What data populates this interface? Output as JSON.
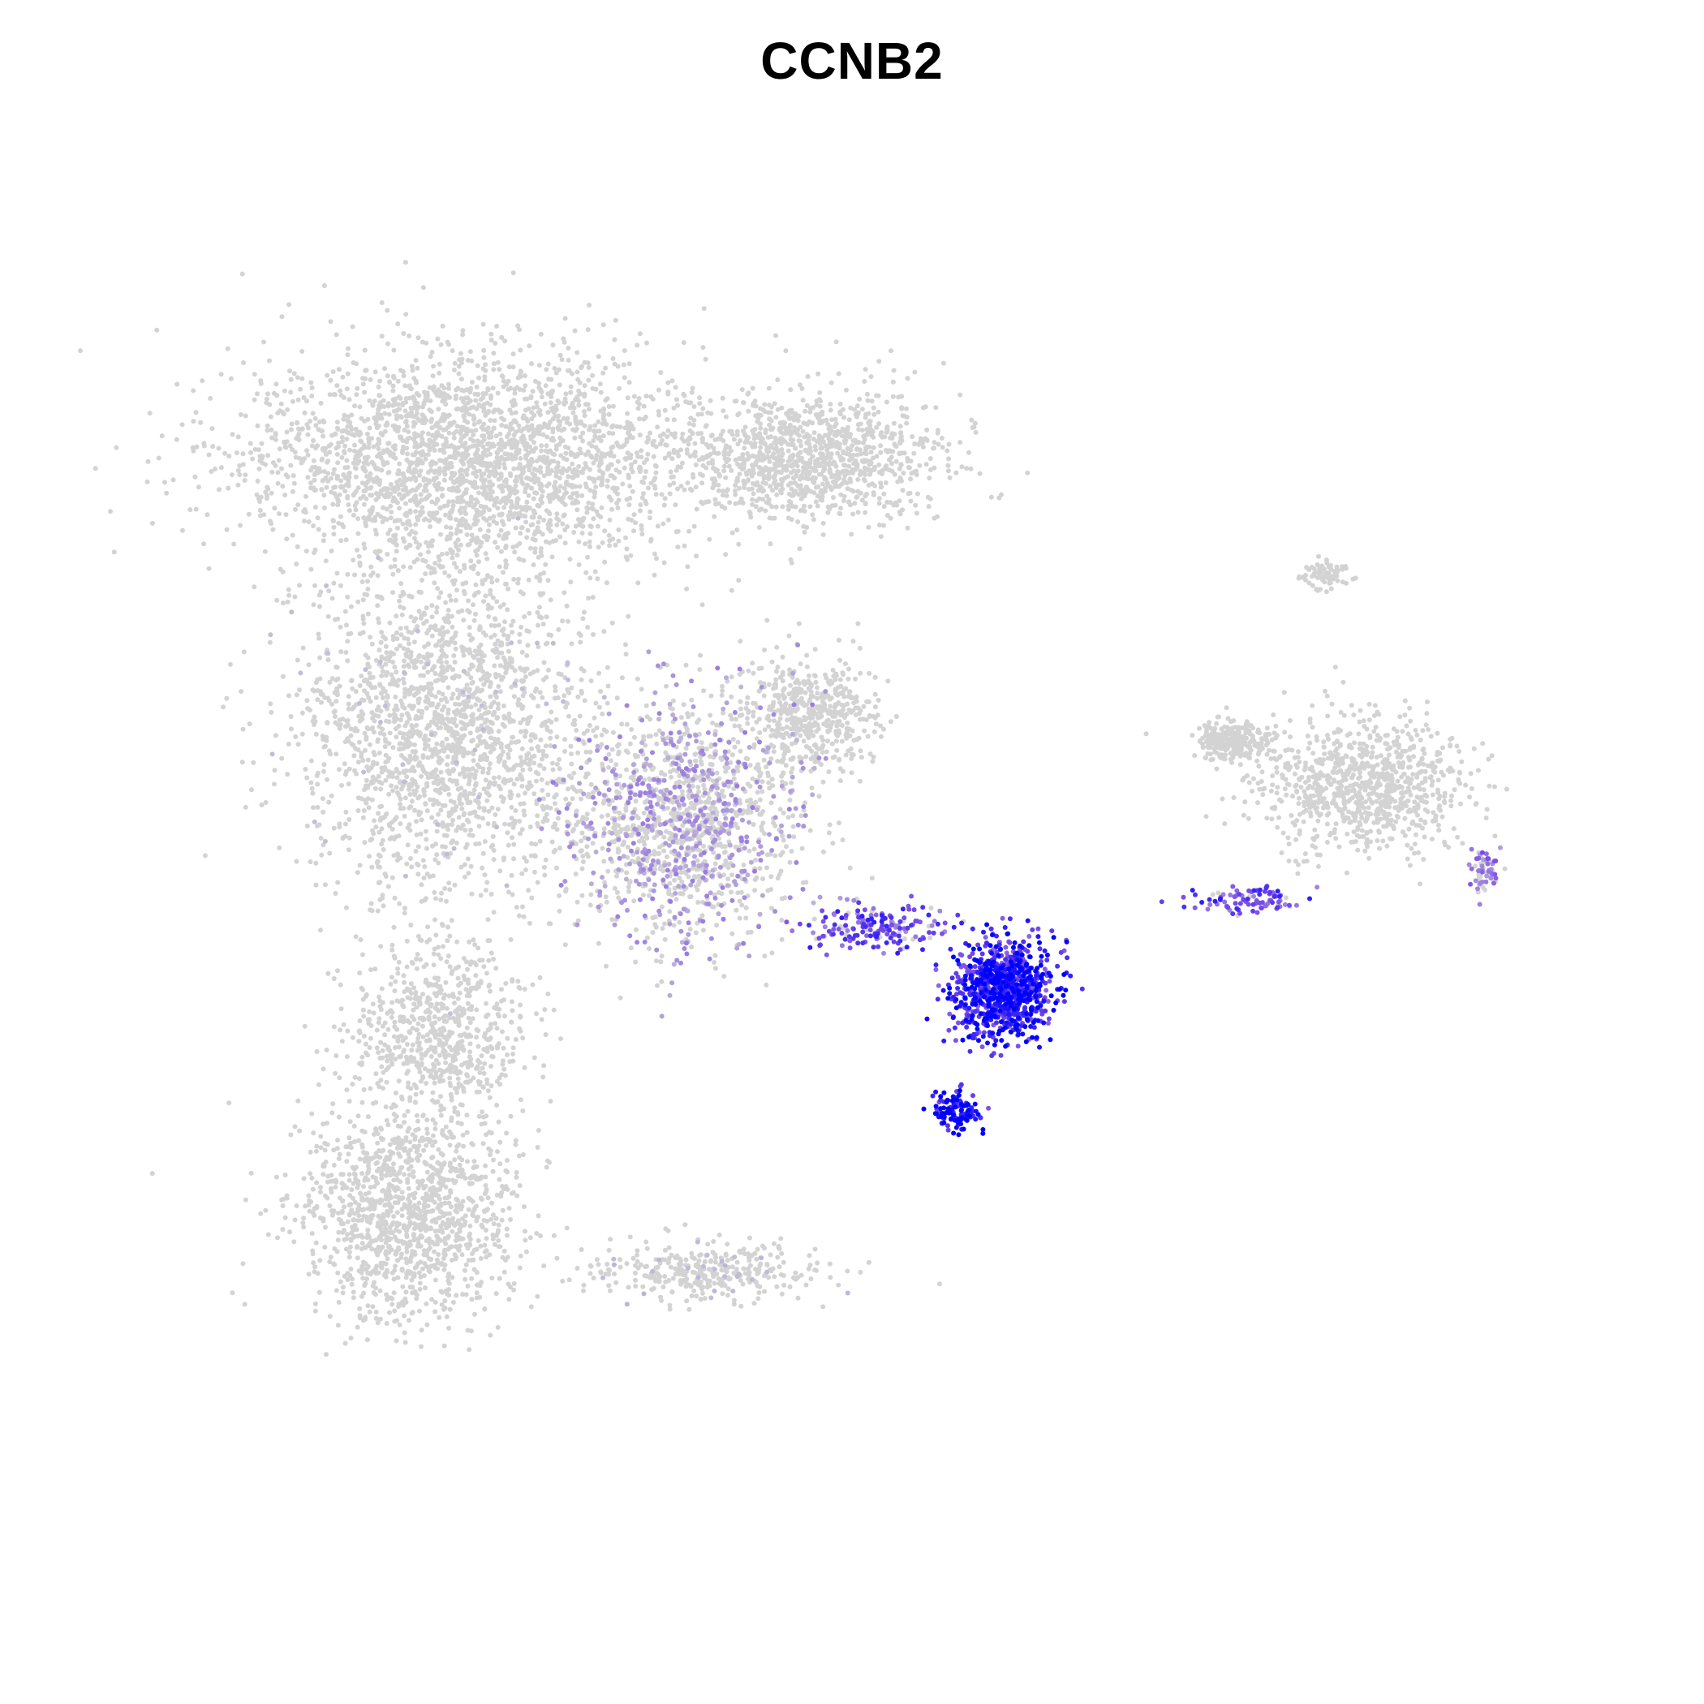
{
  "chart_data": {
    "type": "scatter",
    "title": "CCNB2",
    "xlabel": "",
    "ylabel": "",
    "grid": false,
    "axes_visible": false,
    "legend": "none",
    "colors": {
      "low": "#d3d3d3",
      "high": "#0000ff",
      "mid": "#7b4ee8"
    },
    "expression_scale": [
      0,
      1
    ],
    "clusters": [
      {
        "id": "top-left-mass",
        "center": [
          -6.8,
          9.2
        ],
        "spread": [
          3.2,
          1.5
        ],
        "n": 2600,
        "expr": 0.03
      },
      {
        "id": "top-right-arm",
        "center": [
          -1.6,
          9.3
        ],
        "spread": [
          1.8,
          0.9
        ],
        "n": 1100,
        "expr": 0.02
      },
      {
        "id": "mid-left-mass",
        "center": [
          -7.2,
          5.0
        ],
        "spread": [
          2.0,
          2.4
        ],
        "n": 2000,
        "expr": 0.06
      },
      {
        "id": "mid-center-gradient",
        "center": [
          -3.6,
          3.6
        ],
        "spread": [
          1.6,
          1.7
        ],
        "n": 1500,
        "expr": 0.22
      },
      {
        "id": "mid-right-lobe",
        "center": [
          -1.6,
          5.2
        ],
        "spread": [
          0.9,
          0.8
        ],
        "n": 500,
        "expr": 0.05
      },
      {
        "id": "bottom-left-upper",
        "center": [
          -7.3,
          0.2
        ],
        "spread": [
          1.2,
          1.2
        ],
        "n": 700,
        "expr": 0.03
      },
      {
        "id": "bottom-left-lower",
        "center": [
          -7.7,
          -2.6
        ],
        "spread": [
          1.5,
          1.5
        ],
        "n": 1300,
        "expr": 0.04
      },
      {
        "id": "bottom-loop",
        "center": [
          -3.2,
          -3.5
        ],
        "spread": [
          1.5,
          0.4
        ],
        "n": 350,
        "expr": 0.08
      },
      {
        "id": "proliferating-core",
        "center": [
          1.3,
          0.9
        ],
        "spread": [
          0.7,
          0.7
        ],
        "n": 900,
        "expr": 0.78
      },
      {
        "id": "proliferating-bridge",
        "center": [
          -0.6,
          1.9
        ],
        "spread": [
          0.9,
          0.3
        ],
        "n": 180,
        "expr": 0.55
      },
      {
        "id": "proliferating-lower",
        "center": [
          0.6,
          -1.0
        ],
        "spread": [
          0.3,
          0.3
        ],
        "n": 120,
        "expr": 0.85
      },
      {
        "id": "right-cluster-main",
        "center": [
          6.8,
          4.1
        ],
        "spread": [
          1.4,
          0.9
        ],
        "n": 900,
        "expr": 0.03
      },
      {
        "id": "right-cluster-left",
        "center": [
          4.8,
          4.8
        ],
        "spread": [
          0.5,
          0.3
        ],
        "n": 260,
        "expr": 0.02
      },
      {
        "id": "right-tail",
        "center": [
          5.0,
          2.3
        ],
        "spread": [
          0.8,
          0.2
        ],
        "n": 90,
        "expr": 0.55
      },
      {
        "id": "right-satellite",
        "center": [
          6.2,
          7.4
        ],
        "spread": [
          0.3,
          0.2
        ],
        "n": 70,
        "expr": 0.03
      },
      {
        "id": "far-right-small",
        "center": [
          8.6,
          2.8
        ],
        "spread": [
          0.2,
          0.3
        ],
        "n": 60,
        "expr": 0.35
      }
    ],
    "xlim": [
      -12,
      10
    ],
    "ylim": [
      -8,
      13
    ]
  }
}
